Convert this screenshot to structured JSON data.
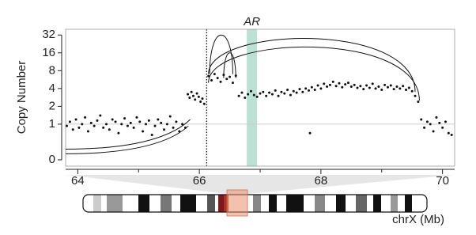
{
  "chart_data": {
    "type": "scatter",
    "y_label": "Copy Number",
    "x_label": "chrX (Mb)",
    "xlim": [
      63.8,
      70.2
    ],
    "xticks": [
      64,
      66,
      68,
      70
    ],
    "xminor_ticks": [
      65,
      67,
      69
    ],
    "ylim": [
      0,
      40
    ],
    "yticks": [
      0,
      1,
      2,
      4,
      8,
      16,
      32
    ],
    "yscale": "log2",
    "reference_line": 1,
    "breakpoint_line": 66.12,
    "highlight": {
      "from": 66.78,
      "to": 66.95,
      "label": "AR",
      "color": "#a9d9c9"
    },
    "color": "#111111",
    "x": [
      63.82,
      63.87,
      63.92,
      63.97,
      64.02,
      64.07,
      64.12,
      64.17,
      64.22,
      64.27,
      64.32,
      64.37,
      64.42,
      64.47,
      64.52,
      64.57,
      64.62,
      64.67,
      64.72,
      64.77,
      64.82,
      64.87,
      64.92,
      64.97,
      65.02,
      65.07,
      65.12,
      65.17,
      65.22,
      65.27,
      65.32,
      65.37,
      65.42,
      65.47,
      65.52,
      65.57,
      65.62,
      65.67,
      65.72,
      65.77,
      65.81,
      65.84,
      65.87,
      65.9,
      65.93,
      65.96,
      65.99,
      66.02,
      66.05,
      66.08,
      66.15,
      66.2,
      66.25,
      66.3,
      66.35,
      66.4,
      66.45,
      66.5,
      66.55,
      66.6,
      66.65,
      66.7,
      66.75,
      66.8,
      66.85,
      66.9,
      66.95,
      67,
      67.05,
      67.1,
      67.15,
      67.2,
      67.25,
      67.3,
      67.35,
      67.4,
      67.45,
      67.5,
      67.55,
      67.6,
      67.65,
      67.7,
      67.75,
      67.8,
      67.85,
      67.9,
      67.95,
      68,
      68.05,
      68.1,
      68.15,
      68.2,
      68.25,
      68.3,
      68.35,
      68.4,
      68.45,
      68.5,
      68.55,
      68.6,
      68.65,
      68.7,
      68.75,
      68.8,
      68.85,
      68.9,
      68.95,
      69,
      69.05,
      69.1,
      69.15,
      69.2,
      69.25,
      69.3,
      69.35,
      69.4,
      69.45,
      69.5,
      69.55,
      69.6,
      69.65,
      69.7,
      69.75,
      69.8,
      69.85,
      69.9,
      69.95,
      70,
      70.05,
      70.1,
      70.15,
      67.82
    ],
    "values": [
      0.95,
      1.1,
      0.85,
      1.2,
      0.9,
      1.0,
      1.3,
      0.8,
      1.05,
      0.95,
      1.15,
      1.4,
      0.9,
      1.0,
      0.85,
      1.2,
      1.1,
      0.75,
      1.0,
      1.25,
      0.95,
      1.05,
      0.9,
      1.3,
      1.1,
      0.8,
      1.0,
      1.15,
      0.7,
      0.95,
      1.2,
      1.05,
      0.85,
      1.0,
      1.35,
      0.9,
      1.1,
      0.8,
      1.0,
      0.9,
      3.2,
      2.8,
      3.5,
      3.0,
      2.6,
      3.3,
      2.9,
      2.4,
      2.7,
      2.2,
      6.5,
      5.5,
      7.0,
      6.0,
      5.2,
      6.8,
      5.8,
      6.3,
      5.0,
      6.6,
      3.0,
      3.4,
      2.8,
      3.2,
      3.6,
      3.1,
      2.9,
      3.3,
      3.5,
      3.0,
      3.4,
      3.2,
      3.7,
      3.0,
      3.5,
      3.3,
      3.8,
      3.1,
      3.6,
      3.4,
      3.9,
      3.5,
      4.0,
      3.7,
      4.2,
      3.8,
      4.5,
      4.0,
      4.8,
      4.3,
      4.6,
      5.2,
      4.4,
      4.9,
      4.2,
      4.7,
      5.0,
      4.3,
      4.6,
      4.1,
      4.4,
      3.9,
      4.5,
      4.1,
      4.8,
      4.0,
      4.3,
      3.8,
      4.6,
      4.2,
      4.5,
      3.9,
      4.3,
      4.0,
      4.4,
      3.8,
      4.1,
      3.6,
      3.0,
      2.4,
      1.2,
      0.9,
      1.1,
      1.0,
      0.8,
      1.3,
      1.05,
      0.9,
      1.1,
      0.75,
      0.7,
      0.75
    ],
    "arcs": [
      [
        66.15,
        7,
        69.55,
        3.5,
        28
      ],
      [
        66.15,
        5,
        69.62,
        2.5,
        20
      ],
      [
        66.17,
        7,
        66.55,
        7,
        32
      ],
      [
        66.4,
        6,
        66.6,
        6,
        16
      ]
    ],
    "tails": [
      [
        63.8,
        0.17,
        65.82,
        0.95
      ],
      [
        63.8,
        0.3,
        65.85,
        1.2
      ]
    ]
  }
}
